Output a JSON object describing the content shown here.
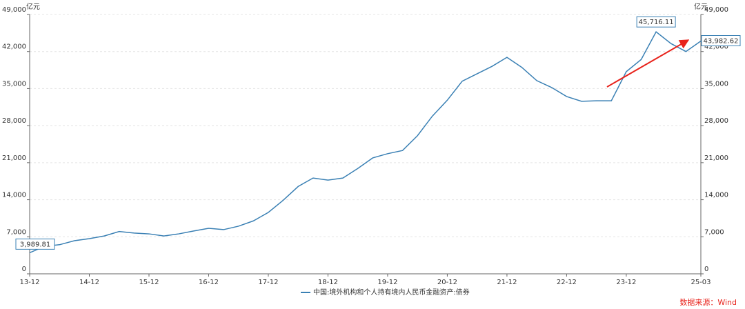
{
  "chart_data": {
    "type": "line",
    "ylabel": "亿元",
    "y2label": "亿元",
    "categories": [
      "13-12",
      null,
      null,
      null,
      "14-12",
      null,
      null,
      null,
      "15-12",
      null,
      null,
      null,
      "16-12",
      null,
      null,
      null,
      "17-12",
      null,
      null,
      null,
      "18-12",
      null,
      null,
      null,
      "19-12",
      null,
      null,
      null,
      "20-12",
      null,
      null,
      null,
      "21-12",
      null,
      null,
      null,
      "22-12",
      null,
      null,
      null,
      "23-12",
      null,
      null,
      null,
      null,
      "25-03"
    ],
    "series": [
      {
        "name": "中国:境外机构和个人持有境内人民币金融资产:债券",
        "color": "#3a80b4",
        "values": [
          3989.81,
          5200,
          5500,
          6250,
          6650,
          7150,
          8000,
          7700,
          7550,
          7150,
          7550,
          8100,
          8600,
          8350,
          9000,
          10000,
          11600,
          13900,
          16500,
          18100,
          17700,
          18100,
          19900,
          21900,
          22700,
          23300,
          26100,
          29800,
          32800,
          36400,
          37800,
          39200,
          40900,
          39000,
          36500,
          35200,
          33500,
          32600,
          32700,
          32700,
          38200,
          40500,
          45716.11,
          43500,
          42000,
          43982.62
        ],
        "value_labels": [
          "3,989.81",
          null,
          null,
          null,
          null,
          null,
          null,
          null,
          null,
          null,
          null,
          null,
          null,
          null,
          null,
          null,
          null,
          null,
          null,
          null,
          null,
          null,
          null,
          null,
          null,
          null,
          null,
          null,
          null,
          null,
          null,
          null,
          null,
          null,
          null,
          null,
          null,
          null,
          null,
          null,
          null,
          null,
          "45,716.11",
          null,
          null,
          "43,982.62"
        ]
      }
    ],
    "ylim": [
      0,
      49000
    ],
    "yticks": [
      0,
      {
        "value": 7000,
        "label": "7,000"
      },
      {
        "value": 14000,
        "label": "14,000"
      },
      {
        "value": 21000,
        "label": "21,000"
      },
      {
        "value": 28000,
        "label": "28,000"
      },
      {
        "value": 35000,
        "label": "35,000"
      },
      {
        "value": 42000,
        "label": "42,000"
      },
      {
        "value": 49000,
        "label": "49,000"
      }
    ],
    "y2lim": [
      0,
      49000
    ],
    "y2ticks": [
      0,
      {
        "value": 7000,
        "label": "7,000"
      },
      {
        "value": 14000,
        "label": "14,000"
      },
      {
        "value": 21000,
        "label": "21,000"
      },
      {
        "value": 28000,
        "label": "28,000"
      },
      {
        "value": 35000,
        "label": "35,000"
      },
      {
        "value": 42000,
        "label": "42,000"
      },
      {
        "value": 49000,
        "label": "49,000"
      }
    ],
    "grid": true,
    "legend": "bottom",
    "source": "数据来源：Wind"
  }
}
